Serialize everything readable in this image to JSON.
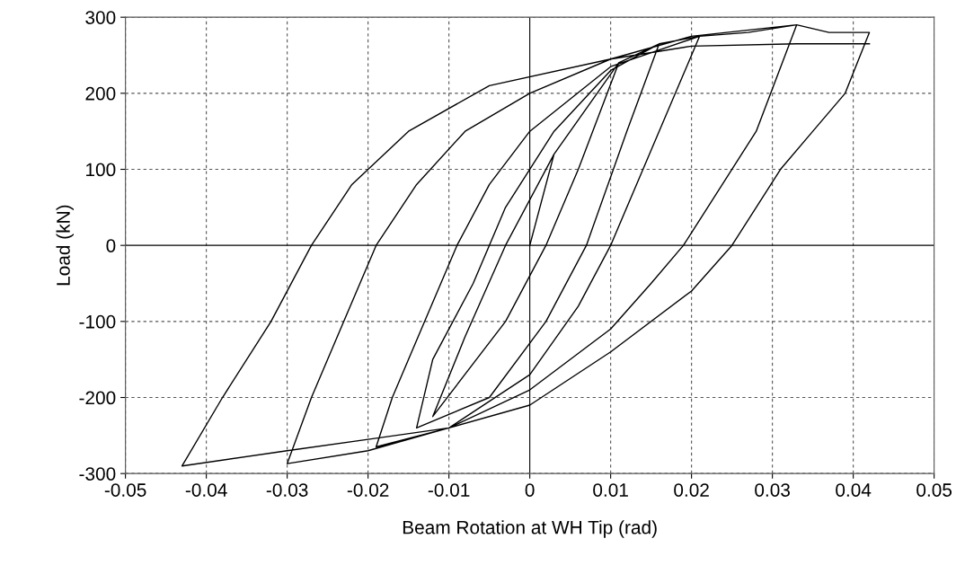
{
  "chart_data": {
    "type": "line",
    "xlabel": "Beam Rotation at WH Tip (rad)",
    "ylabel": "Load (kN)",
    "xlim": [
      -0.05,
      0.05
    ],
    "xticks": [
      -0.05,
      -0.04,
      -0.03,
      -0.02,
      -0.01,
      0,
      0.01,
      0.02,
      0.03,
      0.04,
      0.05
    ],
    "ylim": [
      -300,
      300
    ],
    "yticks": [
      -300,
      -200,
      -100,
      0,
      100,
      200,
      300
    ],
    "grid": true,
    "legend": false,
    "line_style": "solid",
    "marker": "none",
    "series": [
      {
        "color": "#000000",
        "x": [
          0,
          0.003,
          0.011,
          0.006,
          0.002,
          -0.003,
          -0.012,
          -0.008,
          -0.003,
          0.003,
          0.011,
          0.016,
          0.012,
          0.007,
          0.002,
          -0.005,
          -0.014,
          -0.012,
          -0.007,
          -0.003,
          0.003,
          0.01,
          0.016,
          0.021,
          0.018,
          0.014,
          0.01,
          0.006,
          0,
          -0.01,
          -0.019,
          -0.017,
          -0.013,
          -0.009,
          -0.005,
          0,
          0.01,
          0.021,
          0.027,
          0.033,
          0.028,
          0.022,
          0.019,
          0.015,
          0.01,
          0,
          -0.01,
          -0.02,
          -0.03,
          -0.027,
          -0.023,
          -0.019,
          -0.014,
          -0.008,
          0,
          0.01,
          0.02,
          0.033,
          0.037,
          0.042,
          0.039,
          0.035,
          0.031,
          0.025,
          0.02,
          0.01,
          0,
          -0.01,
          -0.02,
          -0.03,
          -0.043,
          -0.038,
          -0.032,
          -0.027,
          -0.022,
          -0.015,
          -0.005,
          0.01,
          0.02,
          0.033,
          0.042
        ],
        "values": [
          0,
          120,
          240,
          100,
          0,
          -100,
          -225,
          -120,
          0,
          120,
          240,
          265,
          150,
          0,
          -100,
          -200,
          -240,
          -150,
          -50,
          50,
          150,
          230,
          265,
          275,
          200,
          100,
          0,
          -80,
          -170,
          -240,
          -265,
          -200,
          -100,
          0,
          80,
          150,
          235,
          275,
          280,
          290,
          150,
          50,
          0,
          -50,
          -110,
          -190,
          -240,
          -270,
          -287,
          -200,
          -100,
          0,
          80,
          150,
          200,
          245,
          275,
          290,
          280,
          280,
          200,
          150,
          100,
          0,
          -60,
          -140,
          -210,
          -240,
          -255,
          -270,
          -290,
          -200,
          -100,
          0,
          80,
          150,
          210,
          245,
          262,
          265,
          265
        ]
      }
    ]
  }
}
